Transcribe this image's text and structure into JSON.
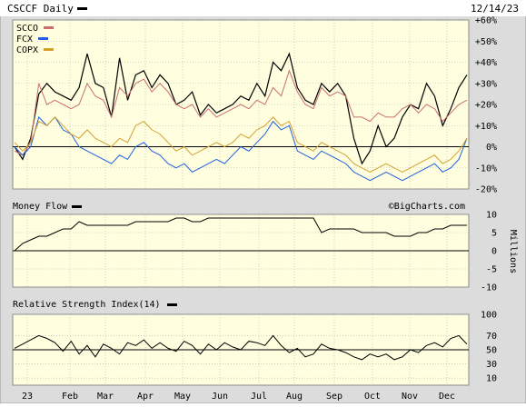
{
  "header": {
    "title": "CSCCF Daily",
    "date": "12/14/23"
  },
  "credit": "©BigCharts.com",
  "colors": {
    "panel_bg": "#ffffe0",
    "frame_bg": "#dcdcdc",
    "grid": "#b0b0b0",
    "price_line": "#000000",
    "scco": "#c87070",
    "fcx": "#1f5fe0",
    "copx": "#d4a030"
  },
  "chart_data": [
    {
      "type": "line",
      "title": "CSCCF Daily",
      "y_tick_labels": [
        "+60%",
        "+50%",
        "+40%",
        "+30%",
        "+20%",
        "+10%",
        "0%",
        "-10%",
        "-20%"
      ],
      "ylim": [
        -20,
        60
      ],
      "grid": true,
      "legend": "top-left",
      "series": [
        {
          "name": "",
          "color": "#000000",
          "values": [
            0,
            -6,
            4,
            25,
            30,
            26,
            24,
            22,
            28,
            44,
            30,
            28,
            14,
            42,
            22,
            34,
            36,
            28,
            34,
            30,
            20,
            22,
            26,
            15,
            20,
            16,
            18,
            20,
            24,
            22,
            30,
            24,
            40,
            36,
            44,
            28,
            22,
            20,
            30,
            26,
            30,
            24,
            4,
            -8,
            -2,
            10,
            0,
            4,
            14,
            20,
            18,
            30,
            24,
            10,
            18,
            28,
            34
          ]
        },
        {
          "name": "SCCO",
          "color": "#c87070",
          "values": [
            -2,
            -4,
            2,
            30,
            20,
            22,
            20,
            18,
            20,
            30,
            24,
            22,
            14,
            28,
            24,
            30,
            32,
            26,
            30,
            26,
            20,
            18,
            20,
            14,
            18,
            14,
            16,
            18,
            20,
            18,
            22,
            20,
            28,
            24,
            36,
            26,
            20,
            18,
            28,
            24,
            26,
            24,
            14,
            14,
            12,
            16,
            14,
            14,
            18,
            20,
            16,
            20,
            18,
            12,
            16,
            20,
            22
          ]
        },
        {
          "name": "FCX",
          "color": "#1f5fe0",
          "values": [
            0,
            -4,
            0,
            14,
            10,
            14,
            8,
            6,
            0,
            -2,
            -4,
            -6,
            -8,
            -4,
            -6,
            0,
            2,
            -2,
            -4,
            -8,
            -10,
            -8,
            -12,
            -10,
            -8,
            -6,
            -8,
            -4,
            0,
            -2,
            2,
            6,
            12,
            8,
            10,
            -2,
            -4,
            -6,
            -2,
            -4,
            -6,
            -8,
            -12,
            -14,
            -16,
            -14,
            -12,
            -14,
            -16,
            -14,
            -12,
            -10,
            -8,
            -12,
            -10,
            -6,
            4
          ]
        },
        {
          "name": "COPX",
          "color": "#d4a030",
          "values": [
            2,
            -2,
            2,
            12,
            10,
            14,
            10,
            6,
            4,
            8,
            4,
            2,
            0,
            4,
            2,
            10,
            12,
            8,
            6,
            2,
            -2,
            0,
            -4,
            -2,
            0,
            2,
            0,
            2,
            6,
            4,
            8,
            10,
            14,
            10,
            12,
            2,
            0,
            -2,
            2,
            0,
            -2,
            -4,
            -8,
            -10,
            -12,
            -10,
            -8,
            -10,
            -12,
            -10,
            -8,
            -6,
            -4,
            -8,
            -6,
            -2,
            4
          ]
        }
      ]
    },
    {
      "type": "area",
      "title": "Money Flow",
      "y_tick_labels": [
        "10",
        "5",
        "0",
        "-5",
        "-10"
      ],
      "ylabel": "Millions",
      "ylim": [
        -10,
        10
      ],
      "series": [
        {
          "name": "Money Flow",
          "color": "#000000",
          "values": [
            0,
            2,
            3,
            4,
            4,
            5,
            6,
            6,
            8,
            7,
            7,
            7,
            7,
            7,
            7,
            8,
            8,
            8,
            8,
            8,
            9,
            9,
            8,
            8,
            9,
            9,
            9,
            9,
            9,
            9,
            9,
            9,
            9,
            9,
            9,
            9,
            9,
            9,
            5,
            6,
            6,
            6,
            6,
            5,
            5,
            5,
            5,
            4,
            4,
            4,
            5,
            5,
            6,
            6,
            7,
            7,
            7
          ]
        }
      ]
    },
    {
      "type": "line",
      "title": "Relative Strength Index(14)",
      "y_tick_labels": [
        "100",
        "70",
        "50",
        "30",
        "10"
      ],
      "ylim": [
        0,
        100
      ],
      "series": [
        {
          "name": "Relative Strength Index(14)",
          "color": "#000000",
          "values": [
            52,
            58,
            64,
            70,
            66,
            60,
            48,
            62,
            44,
            56,
            40,
            58,
            52,
            44,
            60,
            56,
            64,
            52,
            60,
            52,
            48,
            62,
            56,
            44,
            58,
            50,
            60,
            54,
            50,
            62,
            60,
            56,
            70,
            56,
            46,
            52,
            40,
            44,
            58,
            52,
            50,
            46,
            40,
            36,
            44,
            40,
            44,
            36,
            40,
            50,
            46,
            56,
            60,
            54,
            66,
            70,
            58
          ]
        }
      ]
    }
  ],
  "x_axis": {
    "labels": [
      "23",
      "Feb",
      "Mar",
      "Apr",
      "May",
      "Jun",
      "Jul",
      "Aug",
      "Sep",
      "Oct",
      "Nov",
      "Dec"
    ]
  }
}
